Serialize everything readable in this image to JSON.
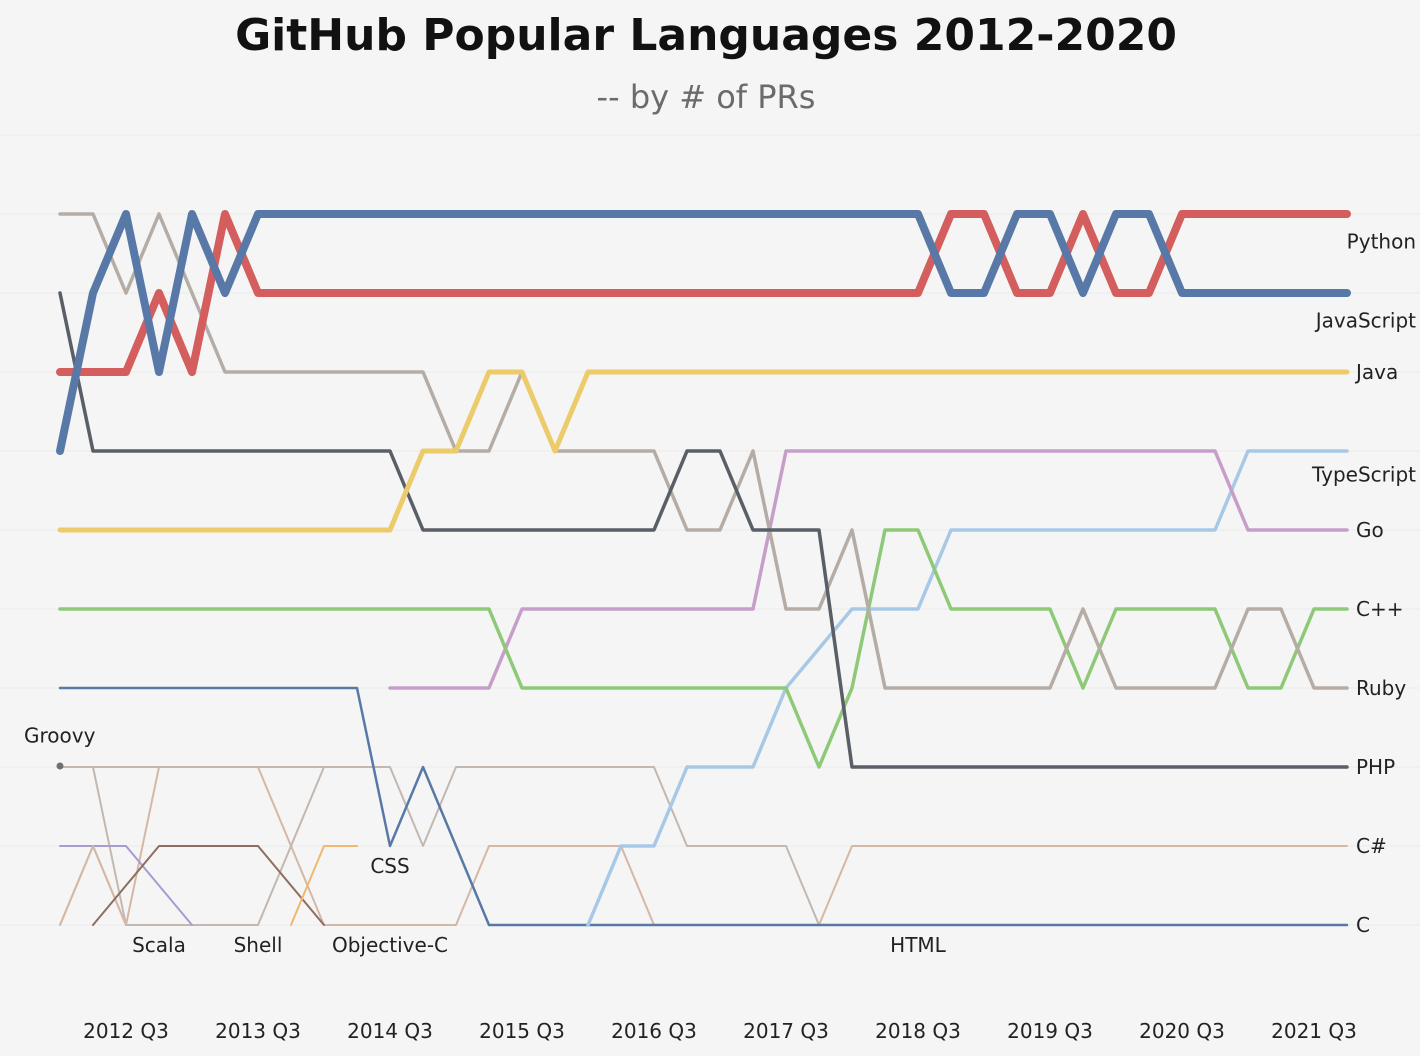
{
  "chart_data": {
    "type": "line",
    "subtype": "bump",
    "title": "GitHub Popular Languages 2012-2020",
    "subtitle": "-- by # of PRs",
    "xlabel": "",
    "ylabel": "",
    "x_ticks": [
      "2012 Q3",
      "2013 Q3",
      "2014 Q3",
      "2015 Q3",
      "2016 Q3",
      "2017 Q3",
      "2018 Q3",
      "2019 Q3",
      "2020 Q3",
      "2021 Q3"
    ],
    "x_range": [
      "2012 Q1",
      "2021 Q4"
    ],
    "y_axis": "rank",
    "y_range": [
      1,
      10
    ],
    "y_reversed": true,
    "grid": "horizontal",
    "legend": "none",
    "series": [
      {
        "name": "Python",
        "color": "#d45d5d",
        "label_rank": 1.35,
        "points": [
          [
            "2012 Q1",
            3
          ],
          [
            "2012 Q3",
            3
          ],
          [
            "2012 Q4",
            2
          ],
          [
            "2013 Q1",
            3
          ],
          [
            "2013 Q2",
            1
          ],
          [
            "2013 Q3",
            2
          ],
          [
            "2018 Q3",
            2
          ],
          [
            "2018 Q4",
            1
          ],
          [
            "2019 Q1",
            1
          ],
          [
            "2019 Q2",
            2
          ],
          [
            "2019 Q3",
            2
          ],
          [
            "2019 Q4",
            1
          ],
          [
            "2020 Q1",
            2
          ],
          [
            "2020 Q2",
            2
          ],
          [
            "2020 Q3",
            1
          ],
          [
            "2021 Q4",
            1
          ]
        ]
      },
      {
        "name": "JavaScript",
        "color": "#5879a7",
        "label_rank": 2.35,
        "points": [
          [
            "2012 Q1",
            4
          ],
          [
            "2012 Q2",
            2
          ],
          [
            "2012 Q3",
            1
          ],
          [
            "2012 Q4",
            3
          ],
          [
            "2013 Q1",
            1
          ],
          [
            "2013 Q2",
            2
          ],
          [
            "2013 Q3",
            1
          ],
          [
            "2018 Q3",
            1
          ],
          [
            "2018 Q4",
            2
          ],
          [
            "2019 Q1",
            2
          ],
          [
            "2019 Q2",
            1
          ],
          [
            "2019 Q3",
            1
          ],
          [
            "2019 Q4",
            2
          ],
          [
            "2020 Q1",
            1
          ],
          [
            "2020 Q2",
            1
          ],
          [
            "2020 Q3",
            2
          ],
          [
            "2021 Q4",
            2
          ]
        ]
      },
      {
        "name": "Java",
        "color": "#eccc6a",
        "label_rank": 3,
        "points": [
          [
            "2012 Q1",
            5
          ],
          [
            "2014 Q3",
            5
          ],
          [
            "2014 Q4",
            4
          ],
          [
            "2015 Q1",
            4
          ],
          [
            "2015 Q2",
            3
          ],
          [
            "2015 Q3",
            3
          ],
          [
            "2015 Q4",
            4
          ],
          [
            "2016 Q1",
            3
          ],
          [
            "2021 Q4",
            3
          ]
        ]
      },
      {
        "name": "TypeScript",
        "color": "#a8c8e8",
        "label_rank": 4.3,
        "points": [
          [
            "2016 Q1",
            10
          ],
          [
            "2016 Q2",
            9
          ],
          [
            "2016 Q3",
            9
          ],
          [
            "2016 Q4",
            8
          ],
          [
            "2017 Q2",
            8
          ],
          [
            "2017 Q3",
            7
          ],
          [
            "2018 Q1",
            6
          ],
          [
            "2018 Q3",
            6
          ],
          [
            "2018 Q4",
            5
          ],
          [
            "2020 Q4",
            5
          ],
          [
            "2021 Q1",
            4
          ],
          [
            "2021 Q4",
            4
          ]
        ]
      },
      {
        "name": "Go",
        "color": "#c79ec9",
        "label_rank": 5,
        "points": [
          [
            "2014 Q3",
            7
          ],
          [
            "2015 Q2",
            7
          ],
          [
            "2015 Q3",
            6
          ],
          [
            "2017 Q2",
            6
          ],
          [
            "2017 Q3",
            4
          ],
          [
            "2020 Q4",
            4
          ],
          [
            "2021 Q1",
            5
          ],
          [
            "2021 Q4",
            5
          ]
        ]
      },
      {
        "name": "C++",
        "color": "#8ec978",
        "label_rank": 6,
        "points": [
          [
            "2012 Q1",
            6
          ],
          [
            "2015 Q2",
            6
          ],
          [
            "2015 Q3",
            7
          ],
          [
            "2017 Q3",
            7
          ],
          [
            "2017 Q4",
            8
          ],
          [
            "2018 Q1",
            7
          ],
          [
            "2018 Q2",
            5
          ],
          [
            "2018 Q3",
            5
          ],
          [
            "2018 Q4",
            6
          ],
          [
            "2019 Q3",
            6
          ],
          [
            "2019 Q4",
            7
          ],
          [
            "2020 Q1",
            6
          ],
          [
            "2020 Q4",
            6
          ],
          [
            "2021 Q1",
            7
          ],
          [
            "2021 Q2",
            7
          ],
          [
            "2021 Q3",
            6
          ],
          [
            "2021 Q4",
            6
          ]
        ]
      },
      {
        "name": "Ruby",
        "color": "#b5aca5",
        "label_rank": 7,
        "points": [
          [
            "2012 Q1",
            1
          ],
          [
            "2012 Q2",
            1
          ],
          [
            "2012 Q3",
            2
          ],
          [
            "2012 Q4",
            1
          ],
          [
            "2013 Q1",
            2
          ],
          [
            "2013 Q2",
            3
          ],
          [
            "2014 Q4",
            3
          ],
          [
            "2015 Q1",
            4
          ],
          [
            "2015 Q2",
            4
          ],
          [
            "2015 Q3",
            3
          ],
          [
            "2015 Q4",
            4
          ],
          [
            "2016 Q3",
            4
          ],
          [
            "2016 Q4",
            5
          ],
          [
            "2017 Q1",
            5
          ],
          [
            "2017 Q2",
            4
          ],
          [
            "2017 Q3",
            6
          ],
          [
            "2017 Q4",
            6
          ],
          [
            "2018 Q1",
            5
          ],
          [
            "2018 Q2",
            7
          ],
          [
            "2019 Q3",
            7
          ],
          [
            "2019 Q4",
            6
          ],
          [
            "2020 Q1",
            7
          ],
          [
            "2020 Q4",
            7
          ],
          [
            "2021 Q1",
            6
          ],
          [
            "2021 Q2",
            6
          ],
          [
            "2021 Q3",
            7
          ],
          [
            "2021 Q4",
            7
          ]
        ]
      },
      {
        "name": "PHP",
        "color": "#5a5e66",
        "label_rank": 8,
        "points": [
          [
            "2012 Q1",
            2
          ],
          [
            "2012 Q2",
            4
          ],
          [
            "2014 Q3",
            4
          ],
          [
            "2014 Q4",
            5
          ],
          [
            "2016 Q3",
            5
          ],
          [
            "2016 Q4",
            4
          ],
          [
            "2017 Q1",
            4
          ],
          [
            "2017 Q2",
            5
          ],
          [
            "2017 Q4",
            5
          ],
          [
            "2018 Q1",
            8
          ],
          [
            "2021 Q4",
            8
          ]
        ]
      },
      {
        "name": "C#",
        "color": "#d4b8a6",
        "label_rank": 9,
        "points": [
          [
            "2012 Q1",
            10
          ],
          [
            "2012 Q2",
            9
          ],
          [
            "2012 Q3",
            10
          ],
          [
            "2012 Q4",
            8
          ],
          [
            "2013 Q3",
            8
          ],
          [
            "2014 Q1",
            10
          ],
          [
            "2015 Q1",
            10
          ],
          [
            "2015 Q2",
            9
          ],
          [
            "2016 Q2",
            9
          ],
          [
            "2016 Q3",
            10
          ],
          [
            "2017 Q4",
            10
          ],
          [
            "2018 Q1",
            9
          ],
          [
            "2021 Q4",
            9
          ]
        ]
      },
      {
        "name": "C",
        "color": "#5879a7",
        "label_rank": 10,
        "points": [
          [
            "2012 Q1",
            7
          ],
          [
            "2014 Q2",
            7
          ],
          [
            "2014 Q3",
            9
          ],
          [
            "2014 Q4",
            8
          ],
          [
            "2015 Q2",
            10
          ],
          [
            "2021 Q4",
            10
          ]
        ]
      },
      {
        "name": "HTML",
        "color": "#c3b8b0",
        "label_rank": 10.25,
        "label_x": "2018 Q3",
        "points": [
          [
            "2012 Q2",
            8
          ],
          [
            "2012 Q3",
            8
          ],
          [
            "2013 Q1",
            8
          ],
          [
            "2013 Q3",
            8
          ],
          [
            "2014 Q1",
            8
          ],
          [
            "2014 Q3",
            8
          ],
          [
            "2014 Q4",
            9
          ],
          [
            "2015 Q1",
            8
          ],
          [
            "2016 Q3",
            8
          ],
          [
            "2016 Q4",
            9
          ],
          [
            "2017 Q3",
            9
          ],
          [
            "2017 Q4",
            10
          ],
          [
            "2021 Q4",
            10
          ]
        ]
      },
      {
        "name": "CSS",
        "color": "#c3b8b0",
        "label_rank": 9.25,
        "label_x": "2014 Q3",
        "points": [
          [
            "2012 Q1",
            8
          ],
          [
            "2012 Q2",
            8
          ],
          [
            "2012 Q3",
            10
          ],
          [
            "2013 Q1",
            10
          ],
          [
            "2013 Q3",
            10
          ],
          [
            "2014 Q1",
            8
          ],
          [
            "2014 Q2",
            8
          ]
        ]
      },
      {
        "name": "Groovy",
        "color": "#6f6f6f",
        "label_rank": 7.6,
        "label_x": "2012 Q1",
        "points": [
          [
            "2012 Q1",
            8
          ]
        ]
      },
      {
        "name": "Scala",
        "color": "#a89bd2",
        "label_rank": 10.25,
        "label_x": "2012 Q4",
        "points": [
          [
            "2012 Q1",
            9
          ],
          [
            "2012 Q3",
            9
          ],
          [
            "2013 Q1",
            10
          ]
        ]
      },
      {
        "name": "Shell",
        "color": "#d4b8a6",
        "label_rank": 10.25,
        "label_x": "2013 Q3",
        "points": [
          [
            "2012 Q1",
            10
          ],
          [
            "2012 Q2",
            9
          ],
          [
            "2012 Q3",
            10
          ]
        ]
      },
      {
        "name": "Objective-C",
        "color": "#8e6e5e",
        "label_rank": 10.25,
        "label_x": "2014 Q3",
        "points": [
          [
            "2012 Q2",
            10
          ],
          [
            "2012 Q4",
            9
          ],
          [
            "2013 Q3",
            9
          ],
          [
            "2014 Q1",
            10
          ]
        ]
      },
      {
        "name": "Objective-C (2)",
        "color": "#f0b870",
        "points": [
          [
            "2013 Q4",
            10
          ],
          [
            "2014 Q1",
            9
          ],
          [
            "2014 Q2",
            9
          ]
        ]
      }
    ]
  }
}
